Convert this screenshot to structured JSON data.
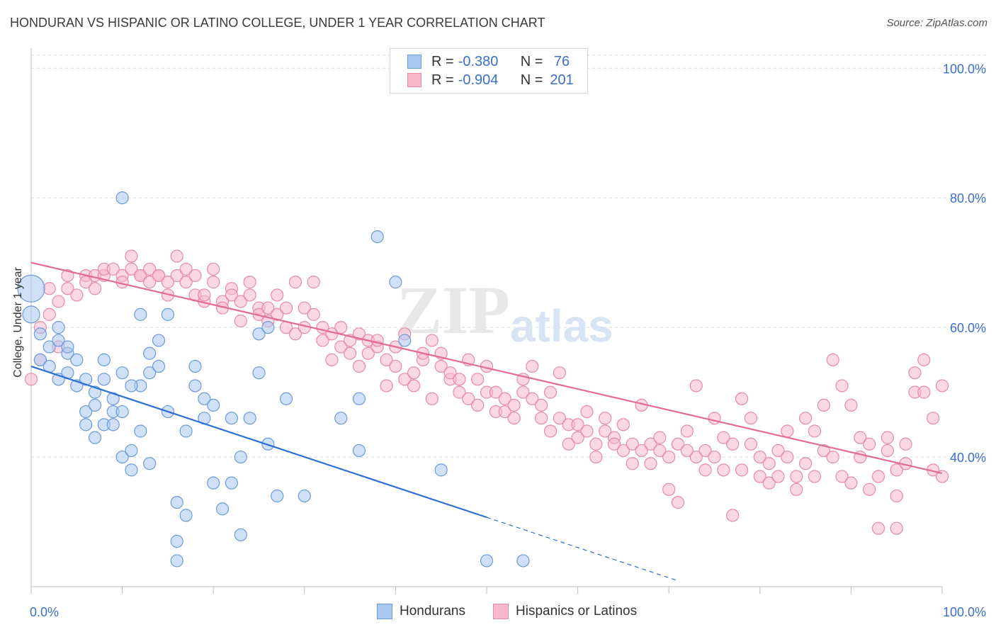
{
  "title": "HONDURAN VS HISPANIC OR LATINO COLLEGE, UNDER 1 YEAR CORRELATION CHART",
  "source": "Source: ZipAtlas.com",
  "watermark": {
    "zip": "ZIP",
    "atlas": "atlas"
  },
  "legend_top": [
    {
      "r_label": "R = ",
      "r_value": "-0.380",
      "n_label": "N = ",
      "n_value": " 76",
      "color": "#a9c8f0",
      "stroke": "#6b9bd8"
    },
    {
      "r_label": "R = ",
      "r_value": "-0.904",
      "n_label": "N = ",
      "n_value": "201",
      "color": "#f7b8cc",
      "stroke": "#e58aa8"
    }
  ],
  "chart_data": {
    "type": "scatter",
    "title": "HONDURAN VS HISPANIC OR LATINO COLLEGE, UNDER 1 YEAR CORRELATION CHART",
    "xlabel": "",
    "ylabel": "College, Under 1 year",
    "xlim": [
      0,
      100
    ],
    "ylim": [
      20,
      102
    ],
    "x_tick_labels": [
      "0.0%",
      "100.0%"
    ],
    "y_tick_labels": [
      "40.0%",
      "60.0%",
      "80.0%",
      "100.0%"
    ],
    "y_ticks": [
      40,
      60,
      80,
      100
    ],
    "grid": true,
    "legend_position": "bottom",
    "series": [
      {
        "name": "Hondurans",
        "color": "#a9c8f0",
        "stroke": "#6b9bd8",
        "line_color": "#2c6fd6",
        "trend": {
          "x0": 0,
          "y0": 54.0,
          "x1": 50,
          "y1": 30.7,
          "dashed_to_x": 71
        },
        "points": [
          [
            0,
            66
          ],
          [
            0,
            62
          ],
          [
            1,
            59
          ],
          [
            1,
            55
          ],
          [
            2,
            57
          ],
          [
            2,
            54
          ],
          [
            3,
            58
          ],
          [
            3,
            52
          ],
          [
            3,
            60
          ],
          [
            4,
            56
          ],
          [
            4,
            53
          ],
          [
            4,
            57
          ],
          [
            5,
            51
          ],
          [
            5,
            55
          ],
          [
            6,
            52
          ],
          [
            6,
            47
          ],
          [
            6,
            45
          ],
          [
            7,
            50
          ],
          [
            7,
            43
          ],
          [
            7,
            48
          ],
          [
            8,
            45
          ],
          [
            8,
            52
          ],
          [
            8,
            55
          ],
          [
            9,
            47
          ],
          [
            9,
            49
          ],
          [
            9,
            45
          ],
          [
            10,
            47
          ],
          [
            10,
            53
          ],
          [
            10,
            40
          ],
          [
            11,
            41
          ],
          [
            11,
            38
          ],
          [
            12,
            51
          ],
          [
            12,
            44
          ],
          [
            13,
            39
          ],
          [
            13,
            53
          ],
          [
            14,
            54
          ],
          [
            14,
            58
          ],
          [
            15,
            47
          ],
          [
            15,
            62
          ],
          [
            10,
            80
          ],
          [
            12,
            62
          ],
          [
            16,
            33
          ],
          [
            16,
            27
          ],
          [
            17,
            31
          ],
          [
            17,
            44
          ],
          [
            18,
            54
          ],
          [
            18,
            51
          ],
          [
            19,
            46
          ],
          [
            19,
            49
          ],
          [
            20,
            48
          ],
          [
            20,
            36
          ],
          [
            21,
            32
          ],
          [
            22,
            36
          ],
          [
            22,
            46
          ],
          [
            23,
            28
          ],
          [
            23,
            40
          ],
          [
            24,
            46
          ],
          [
            25,
            53
          ],
          [
            25,
            59
          ],
          [
            26,
            42
          ],
          [
            26,
            60
          ],
          [
            27,
            34
          ],
          [
            28,
            49
          ],
          [
            30,
            34
          ],
          [
            34,
            46
          ],
          [
            36,
            49
          ],
          [
            36,
            41
          ],
          [
            38,
            74
          ],
          [
            41,
            58
          ],
          [
            40,
            67
          ],
          [
            45,
            38
          ],
          [
            50,
            24
          ],
          [
            54,
            24
          ],
          [
            16,
            24
          ],
          [
            13,
            56
          ],
          [
            11,
            51
          ]
        ]
      },
      {
        "name": "Hispanics or Latinos",
        "color": "#f7b8cc",
        "stroke": "#e58aa8",
        "line_color": "#e26b94",
        "trend": {
          "x0": 0,
          "y0": 70.0,
          "x1": 100,
          "y1": 37.5
        },
        "points": [
          [
            0,
            52
          ],
          [
            1,
            60
          ],
          [
            1,
            55
          ],
          [
            2,
            62
          ],
          [
            2,
            66
          ],
          [
            3,
            64
          ],
          [
            3,
            57
          ],
          [
            4,
            66
          ],
          [
            4,
            68
          ],
          [
            5,
            65
          ],
          [
            6,
            68
          ],
          [
            6,
            67
          ],
          [
            7,
            66
          ],
          [
            7,
            68
          ],
          [
            8,
            68
          ],
          [
            8,
            69
          ],
          [
            9,
            69
          ],
          [
            10,
            68
          ],
          [
            10,
            67
          ],
          [
            11,
            69
          ],
          [
            11,
            71
          ],
          [
            12,
            68
          ],
          [
            12,
            68
          ],
          [
            13,
            69
          ],
          [
            13,
            67
          ],
          [
            14,
            68
          ],
          [
            14,
            68
          ],
          [
            15,
            67
          ],
          [
            15,
            65
          ],
          [
            16,
            71
          ],
          [
            16,
            68
          ],
          [
            17,
            69
          ],
          [
            17,
            67
          ],
          [
            18,
            65
          ],
          [
            18,
            68
          ],
          [
            19,
            64
          ],
          [
            19,
            65
          ],
          [
            20,
            67
          ],
          [
            20,
            69
          ],
          [
            21,
            64
          ],
          [
            21,
            63
          ],
          [
            22,
            66
          ],
          [
            22,
            65
          ],
          [
            23,
            64
          ],
          [
            23,
            61
          ],
          [
            24,
            67
          ],
          [
            24,
            65
          ],
          [
            25,
            63
          ],
          [
            25,
            62
          ],
          [
            26,
            61
          ],
          [
            26,
            63
          ],
          [
            27,
            65
          ],
          [
            27,
            62
          ],
          [
            28,
            60
          ],
          [
            28,
            63
          ],
          [
            29,
            67
          ],
          [
            29,
            59
          ],
          [
            30,
            60
          ],
          [
            30,
            63
          ],
          [
            31,
            62
          ],
          [
            31,
            67
          ],
          [
            32,
            58
          ],
          [
            32,
            60
          ],
          [
            33,
            59
          ],
          [
            33,
            55
          ],
          [
            34,
            60
          ],
          [
            34,
            57
          ],
          [
            35,
            56
          ],
          [
            35,
            58
          ],
          [
            36,
            59
          ],
          [
            36,
            54
          ],
          [
            37,
            56
          ],
          [
            37,
            58
          ],
          [
            38,
            57
          ],
          [
            38,
            58
          ],
          [
            39,
            55
          ],
          [
            39,
            51
          ],
          [
            40,
            57
          ],
          [
            40,
            54
          ],
          [
            41,
            59
          ],
          [
            41,
            52
          ],
          [
            42,
            51
          ],
          [
            42,
            53
          ],
          [
            43,
            55
          ],
          [
            43,
            56
          ],
          [
            44,
            58
          ],
          [
            44,
            49
          ],
          [
            45,
            54
          ],
          [
            45,
            56
          ],
          [
            46,
            52
          ],
          [
            46,
            53
          ],
          [
            47,
            50
          ],
          [
            47,
            52
          ],
          [
            48,
            55
          ],
          [
            48,
            49
          ],
          [
            49,
            48
          ],
          [
            49,
            52
          ],
          [
            50,
            50
          ],
          [
            50,
            54
          ],
          [
            51,
            47
          ],
          [
            51,
            50
          ],
          [
            52,
            47
          ],
          [
            52,
            49
          ],
          [
            53,
            46
          ],
          [
            53,
            48
          ],
          [
            54,
            52
          ],
          [
            54,
            50
          ],
          [
            55,
            49
          ],
          [
            55,
            54
          ],
          [
            56,
            46
          ],
          [
            56,
            48
          ],
          [
            57,
            44
          ],
          [
            57,
            50
          ],
          [
            58,
            46
          ],
          [
            58,
            53
          ],
          [
            59,
            42
          ],
          [
            59,
            45
          ],
          [
            60,
            43
          ],
          [
            60,
            45
          ],
          [
            61,
            47
          ],
          [
            61,
            44
          ],
          [
            62,
            42
          ],
          [
            62,
            40
          ],
          [
            63,
            44
          ],
          [
            63,
            46
          ],
          [
            64,
            43
          ],
          [
            64,
            42
          ],
          [
            65,
            45
          ],
          [
            65,
            41
          ],
          [
            66,
            42
          ],
          [
            66,
            39
          ],
          [
            67,
            41
          ],
          [
            67,
            48
          ],
          [
            68,
            42
          ],
          [
            68,
            39
          ],
          [
            69,
            41
          ],
          [
            69,
            43
          ],
          [
            70,
            40
          ],
          [
            70,
            35
          ],
          [
            71,
            42
          ],
          [
            71,
            33
          ],
          [
            72,
            41
          ],
          [
            72,
            44
          ],
          [
            73,
            40
          ],
          [
            73,
            51
          ],
          [
            74,
            41
          ],
          [
            74,
            38
          ],
          [
            75,
            40
          ],
          [
            75,
            46
          ],
          [
            76,
            43
          ],
          [
            76,
            38
          ],
          [
            77,
            42
          ],
          [
            77,
            31
          ],
          [
            78,
            38
          ],
          [
            78,
            49
          ],
          [
            79,
            46
          ],
          [
            79,
            42
          ],
          [
            80,
            40
          ],
          [
            80,
            37
          ],
          [
            81,
            36
          ],
          [
            81,
            39
          ],
          [
            82,
            41
          ],
          [
            82,
            37
          ],
          [
            83,
            40
          ],
          [
            83,
            44
          ],
          [
            84,
            37
          ],
          [
            84,
            35
          ],
          [
            85,
            39
          ],
          [
            85,
            46
          ],
          [
            86,
            37
          ],
          [
            86,
            44
          ],
          [
            87,
            48
          ],
          [
            87,
            41
          ],
          [
            88,
            40
          ],
          [
            88,
            55
          ],
          [
            89,
            51
          ],
          [
            89,
            37
          ],
          [
            90,
            36
          ],
          [
            90,
            48
          ],
          [
            91,
            43
          ],
          [
            91,
            40
          ],
          [
            92,
            42
          ],
          [
            92,
            35
          ],
          [
            93,
            37
          ],
          [
            93,
            29
          ],
          [
            94,
            43
          ],
          [
            94,
            41
          ],
          [
            95,
            34
          ],
          [
            95,
            38
          ],
          [
            96,
            42
          ],
          [
            96,
            39
          ],
          [
            97,
            50
          ],
          [
            97,
            53
          ],
          [
            98,
            55
          ],
          [
            98,
            50
          ],
          [
            99,
            46
          ],
          [
            99,
            38
          ],
          [
            100,
            37
          ],
          [
            100,
            51
          ],
          [
            95,
            29
          ]
        ]
      }
    ]
  },
  "bottom_legend": [
    {
      "label": "Hondurans",
      "color": "#a9c8f0",
      "stroke": "#6b9bd8"
    },
    {
      "label": "Hispanics or Latinos",
      "color": "#f7b8cc",
      "stroke": "#e58aa8"
    }
  ]
}
